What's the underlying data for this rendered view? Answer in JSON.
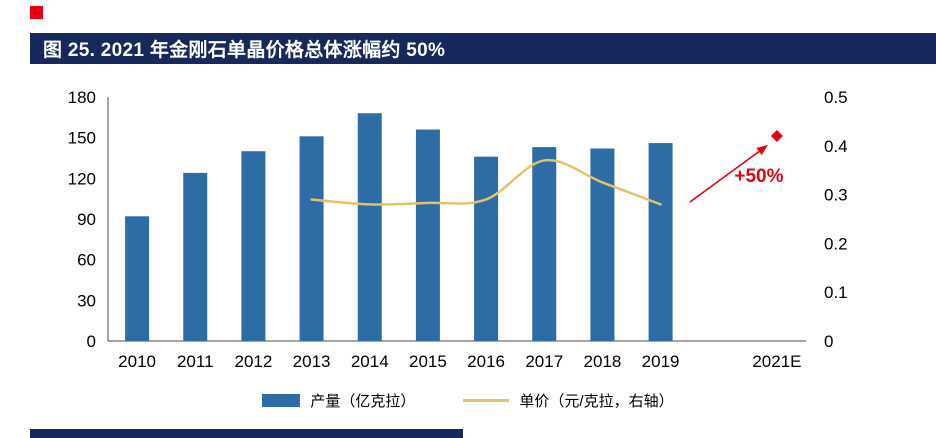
{
  "page": {
    "figure_title": "图 25. 2021 年金刚石单晶价格总体涨幅约 50%"
  },
  "colors": {
    "navy": "#17295c",
    "bar_blue": "#2d6ca5",
    "line_gold": "#e2c468",
    "accent_red": "#e60012",
    "axis_text": "#000000",
    "axis_line": "#4d4d4d"
  },
  "chart_data": {
    "type": "bar",
    "title": "图 25. 2021 年金刚石单晶价格总体涨幅约 50%",
    "categories": [
      "2010",
      "2011",
      "2012",
      "2013",
      "2014",
      "2015",
      "2016",
      "2017",
      "2018",
      "2019",
      "",
      "2021E"
    ],
    "series": [
      {
        "name": "产量（亿克拉）",
        "type": "bar",
        "axis": "left",
        "values": [
          92,
          124,
          140,
          151,
          168,
          156,
          136,
          143,
          142,
          146,
          null,
          null
        ]
      },
      {
        "name": "单价（元/克拉，右轴）",
        "type": "line",
        "axis": "right",
        "values": [
          null,
          null,
          null,
          0.29,
          0.28,
          0.283,
          0.29,
          0.37,
          0.325,
          0.28,
          null,
          null
        ]
      }
    ],
    "forecast_point": {
      "category": "2021E",
      "value": 0.42,
      "marker": "diamond"
    },
    "annotation": "+50%",
    "left_axis": {
      "min": 0,
      "max": 180,
      "ticks": [
        0,
        30,
        60,
        90,
        120,
        150,
        180
      ],
      "label": ""
    },
    "right_axis": {
      "min": 0,
      "max": 0.5,
      "ticks": [
        0,
        0.1,
        0.2,
        0.3,
        0.4,
        0.5
      ],
      "label": ""
    },
    "legend": [
      {
        "label": "产量（亿克拉）",
        "swatch": "bar"
      },
      {
        "label": "单价（元/克拉，右轴）",
        "swatch": "line"
      }
    ],
    "grid": "off",
    "legend_position": "bottom-center"
  }
}
